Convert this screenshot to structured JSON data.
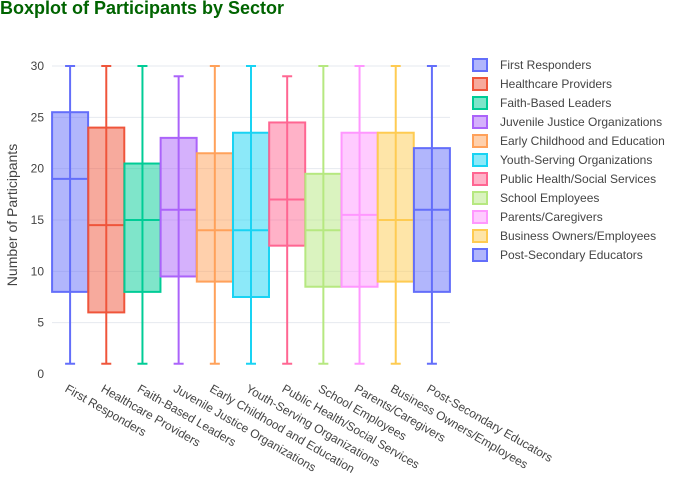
{
  "chart_data": {
    "type": "boxplot",
    "title": "Boxplot of Participants by Sector",
    "title_color": "#006400",
    "xlabel": "",
    "ylabel": "Number of Participants",
    "ylim": [
      0,
      30
    ],
    "yticks": [
      0,
      5,
      10,
      15,
      20,
      25,
      30
    ],
    "grid": true,
    "legend_position": "right",
    "categories": [
      "First Responders",
      "Healthcare Providers",
      "Faith-Based Leaders",
      "Juvenile Justice Organizations",
      "Early Childhood and Education",
      "Youth-Serving Organizations",
      "Public Health/Social Services",
      "School Employees",
      "Parents/Caregivers",
      "Business Owners/Employees",
      "Post-Secondary Educators"
    ],
    "series": [
      {
        "name": "First Responders",
        "color": "#636EFA",
        "min": 1,
        "q1": 8,
        "median": 19,
        "q3": 25.5,
        "max": 30
      },
      {
        "name": "Healthcare Providers",
        "color": "#EF553B",
        "min": 1,
        "q1": 6,
        "median": 14.5,
        "q3": 24,
        "max": 30
      },
      {
        "name": "Faith-Based Leaders",
        "color": "#00CC96",
        "min": 1,
        "q1": 8,
        "median": 15,
        "q3": 20.5,
        "max": 30
      },
      {
        "name": "Juvenile Justice Organizations",
        "color": "#AB63FA",
        "min": 1,
        "q1": 9.5,
        "median": 16,
        "q3": 23,
        "max": 29
      },
      {
        "name": "Early Childhood and Education",
        "color": "#FFA15A",
        "min": 1,
        "q1": 9,
        "median": 14,
        "q3": 21.5,
        "max": 30
      },
      {
        "name": "Youth-Serving Organizations",
        "color": "#19D3F3",
        "min": 1,
        "q1": 7.5,
        "median": 14,
        "q3": 23.5,
        "max": 30
      },
      {
        "name": "Public Health/Social Services",
        "color": "#FF6692",
        "min": 1,
        "q1": 12.5,
        "median": 17,
        "q3": 24.5,
        "max": 29
      },
      {
        "name": "School Employees",
        "color": "#B6E880",
        "min": 1,
        "q1": 8.5,
        "median": 14,
        "q3": 19.5,
        "max": 30
      },
      {
        "name": "Parents/Caregivers",
        "color": "#FF97FF",
        "min": 1,
        "q1": 8.5,
        "median": 15.5,
        "q3": 23.5,
        "max": 30
      },
      {
        "name": "Business Owners/Employees",
        "color": "#FECB52",
        "min": 1,
        "q1": 9,
        "median": 15,
        "q3": 23.5,
        "max": 30
      },
      {
        "name": "Post-Secondary Educators",
        "color": "#636EFA",
        "min": 1,
        "q1": 8,
        "median": 16,
        "q3": 22,
        "max": 30
      }
    ]
  }
}
